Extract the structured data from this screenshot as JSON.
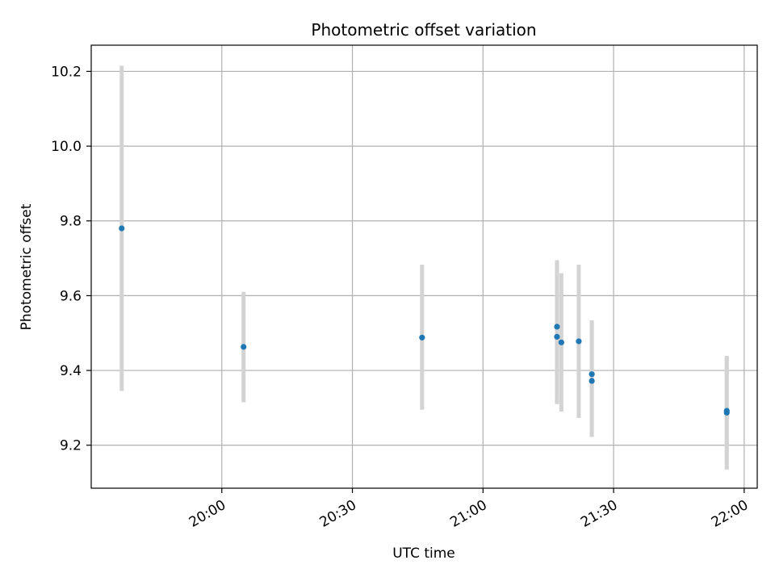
{
  "chart_data": {
    "type": "scatter",
    "title": "Photometric offset variation",
    "xlabel": "UTC time",
    "ylabel": "Photometric offset",
    "x_tick_labels": [
      "20:00",
      "20:30",
      "21:00",
      "21:30",
      "22:00"
    ],
    "x_ticks": [
      "20:00",
      "20:30",
      "21:00",
      "21:30",
      "22:00"
    ],
    "xlim": [
      "19:30",
      "22:03"
    ],
    "y_ticks": [
      9.2,
      9.4,
      9.6,
      9.8,
      10.0,
      10.2
    ],
    "y_tick_labels": [
      "9.2",
      "9.4",
      "9.6",
      "9.8",
      "10.0",
      "10.2"
    ],
    "ylim": [
      9.085,
      10.27
    ],
    "grid": true,
    "point_color": "#1f77b4",
    "errorbar_color": "#d3d3d3",
    "points": [
      {
        "x": "19:37",
        "y": 9.78,
        "low": 9.345,
        "high": 10.215
      },
      {
        "x": "20:05",
        "y": 9.463,
        "low": 9.315,
        "high": 9.61
      },
      {
        "x": "20:46",
        "y": 9.488,
        "low": 9.295,
        "high": 9.683
      },
      {
        "x": "21:17",
        "y": 9.517,
        "low": 9.34,
        "high": 9.695
      },
      {
        "x": "21:17",
        "y": 9.49,
        "low": 9.31,
        "high": 9.68
      },
      {
        "x": "21:18",
        "y": 9.475,
        "low": 9.29,
        "high": 9.66
      },
      {
        "x": "21:22",
        "y": 9.478,
        "low": 9.273,
        "high": 9.683
      },
      {
        "x": "21:25",
        "y": 9.372,
        "low": 9.222,
        "high": 9.522
      },
      {
        "x": "21:25",
        "y": 9.39,
        "low": 9.246,
        "high": 9.534
      },
      {
        "x": "21:56",
        "y": 9.292,
        "low": 9.15,
        "high": 9.434
      },
      {
        "x": "21:56",
        "y": 9.287,
        "low": 9.135,
        "high": 9.439
      }
    ]
  }
}
